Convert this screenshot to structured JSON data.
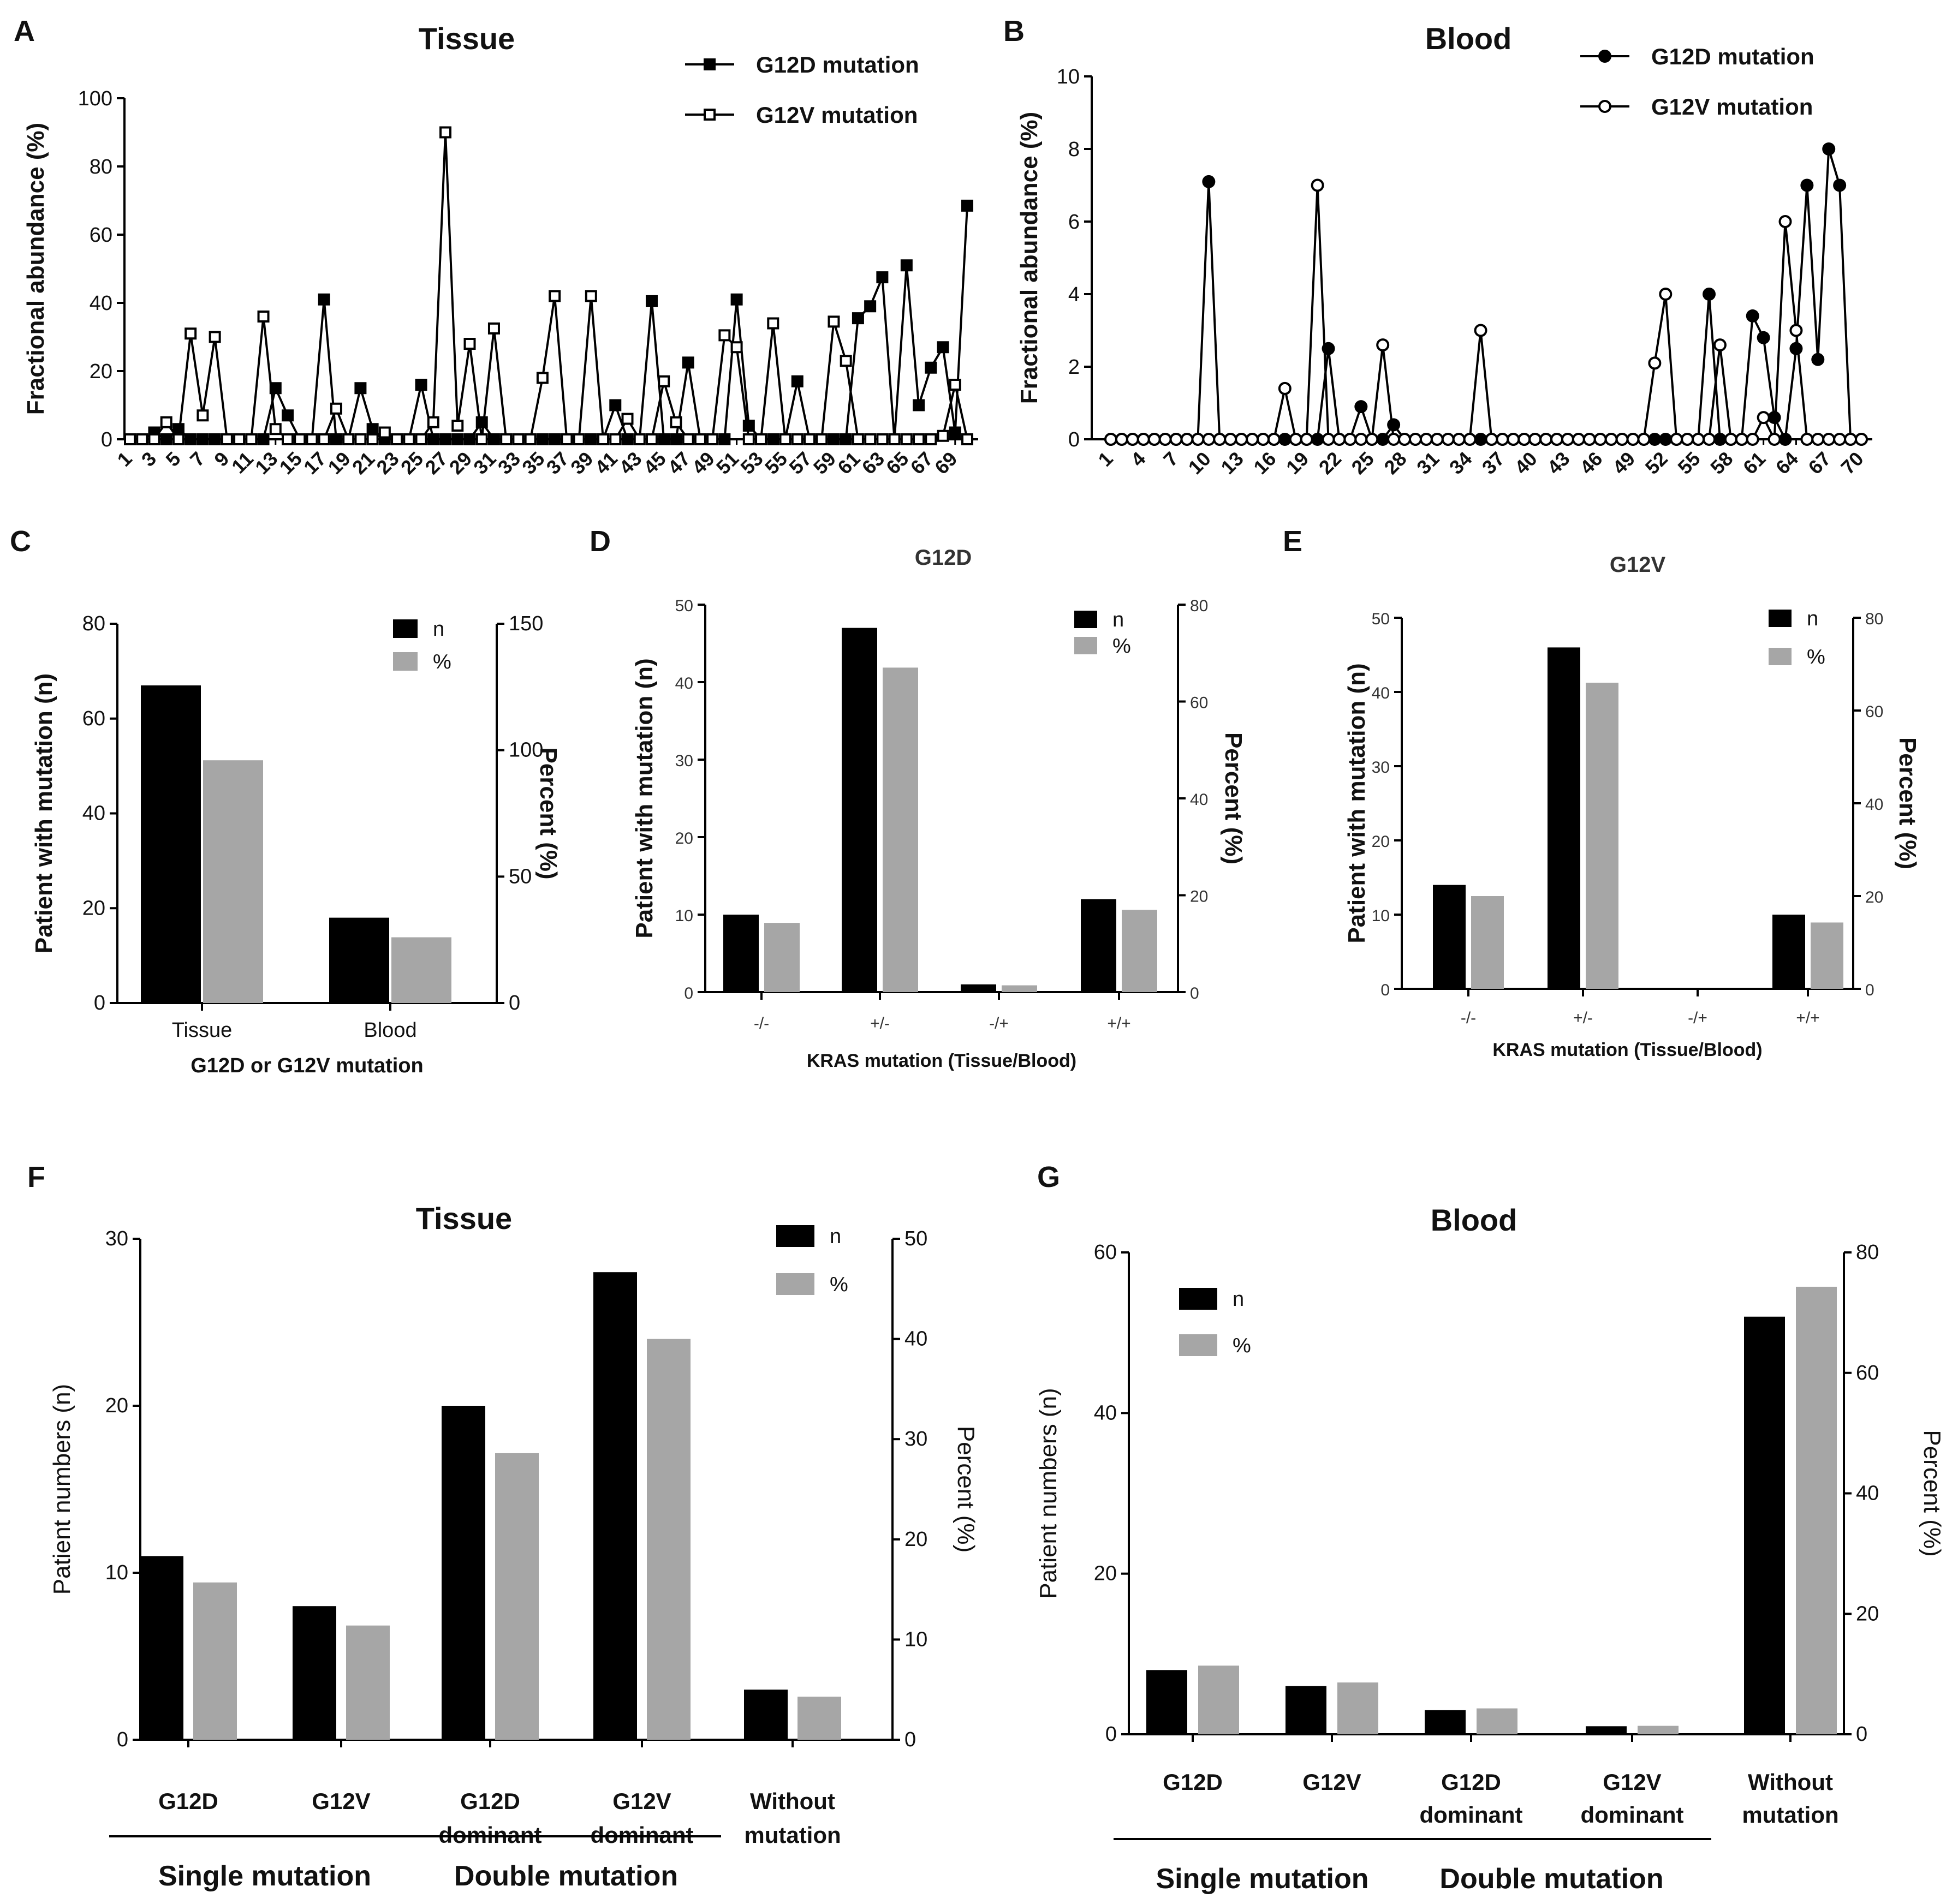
{
  "colors": {
    "black": "#000000",
    "gray": "#a6a6a6"
  },
  "panels": {
    "A": {
      "letter": "A",
      "chart_data": {
        "type": "line",
        "title": "Tissue",
        "ylabel": "Fractional abundance (%)",
        "xlabel": "",
        "ylim": [
          0,
          100
        ],
        "yticks": [
          0,
          20,
          40,
          60,
          80,
          100
        ],
        "x_tick_labels": [
          "1",
          "3",
          "5",
          "7",
          "9",
          "11",
          "13",
          "15",
          "17",
          "19",
          "21",
          "23",
          "25",
          "27",
          "29",
          "31",
          "33",
          "35",
          "37",
          "39",
          "41",
          "43",
          "45",
          "47",
          "49",
          "51",
          "53",
          "55",
          "57",
          "59",
          "61",
          "63",
          "65",
          "67",
          "69"
        ],
        "legend": [
          "G12D mutation",
          "G12V mutation"
        ],
        "series": [
          {
            "name": "G12D mutation",
            "marker": "filled-square",
            "values": [
              0,
              0,
              2,
              0,
              3,
              0,
              0,
              0,
              0,
              0,
              0,
              0,
              15,
              7,
              0,
              0,
              41,
              0,
              0,
              15,
              3,
              0,
              0,
              0,
              16,
              0,
              0,
              0,
              0,
              5,
              0,
              0,
              0,
              0,
              0,
              0,
              0,
              0,
              0,
              0,
              10,
              0,
              0,
              40.5,
              0,
              0,
              22.5,
              0,
              0,
              0,
              41,
              4,
              0,
              0,
              0,
              17,
              0,
              0,
              0,
              0,
              35.5,
              39,
              47.5,
              0,
              51,
              10,
              21,
              27,
              2,
              68.5
            ]
          },
          {
            "name": "G12V mutation",
            "marker": "open-square",
            "values": [
              0,
              0,
              0,
              5,
              0,
              31,
              7,
              30,
              0,
              0,
              0,
              36,
              3,
              0,
              0,
              0,
              0,
              9,
              0,
              0,
              0,
              2,
              0,
              0,
              0,
              5,
              90,
              4,
              28,
              0,
              32.5,
              0,
              0,
              0,
              18,
              42,
              0,
              0,
              42,
              0,
              0,
              6,
              0,
              0,
              17,
              5,
              0,
              0,
              0,
              30.5,
              27,
              0,
              0,
              34,
              0,
              0,
              0,
              0,
              34.5,
              23,
              0,
              0,
              0,
              0,
              0,
              0,
              0,
              1,
              16,
              0
            ]
          }
        ]
      }
    },
    "B": {
      "letter": "B",
      "chart_data": {
        "type": "line",
        "title": "Blood",
        "ylabel": "Fractional abundance (%)",
        "xlabel": "",
        "ylim": [
          0,
          10
        ],
        "yticks": [
          0,
          2,
          4,
          6,
          8,
          10
        ],
        "x_tick_labels": [
          "1",
          "4",
          "7",
          "10",
          "13",
          "16",
          "19",
          "22",
          "25",
          "28",
          "31",
          "34",
          "37",
          "40",
          "43",
          "46",
          "49",
          "52",
          "55",
          "58",
          "61",
          "64",
          "67",
          "70"
        ],
        "legend": [
          "G12D mutation",
          "G12V mutation"
        ],
        "series": [
          {
            "name": "G12D mutation",
            "marker": "filled-circle",
            "values": [
              0,
              0,
              0,
              0,
              0,
              0,
              0,
              0,
              0,
              7.1,
              0,
              0,
              0,
              0,
              0,
              0,
              0,
              0,
              0,
              0,
              2.5,
              0,
              0,
              0.9,
              0,
              0,
              0.4,
              0,
              0,
              0,
              0,
              0,
              0,
              0,
              0,
              0,
              0,
              0,
              0,
              0,
              0,
              0,
              0,
              0,
              0,
              0,
              0,
              0,
              0,
              0,
              0,
              0,
              0,
              0,
              0,
              4.0,
              0,
              0,
              0,
              3.4,
              2.8,
              0.6,
              0,
              2.5,
              7.0,
              2.2,
              8.0,
              7.0,
              0,
              0
            ]
          },
          {
            "name": "G12V mutation",
            "marker": "open-circle",
            "values": [
              0,
              0,
              0,
              0,
              0,
              0,
              0,
              0,
              0,
              0,
              0,
              0,
              0,
              0,
              0,
              0,
              1.4,
              0,
              0,
              7.0,
              0,
              0,
              0,
              0,
              0,
              2.6,
              0,
              0,
              0,
              0,
              0,
              0,
              0,
              0,
              3.0,
              0,
              0,
              0,
              0,
              0,
              0,
              0,
              0,
              0,
              0,
              0,
              0,
              0,
              0,
              0,
              2.1,
              4.0,
              0,
              0,
              0,
              0,
              2.6,
              0,
              0,
              0,
              0.6,
              0,
              6.0,
              3.0,
              0,
              0,
              0,
              0,
              0,
              0
            ]
          }
        ]
      }
    },
    "C": {
      "letter": "C",
      "chart_data": {
        "type": "bar",
        "title": "",
        "categories": [
          "Tissue",
          "Blood"
        ],
        "xlabel": "G12D or G12V mutation",
        "ylabel": "Patient with mutation (n)",
        "y2label": "Percent (%)",
        "ylim": [
          0,
          80
        ],
        "yticks": [
          0,
          20,
          40,
          60,
          80
        ],
        "y2lim": [
          0,
          150
        ],
        "y2ticks": [
          0,
          50,
          100,
          150
        ],
        "legend": [
          "n",
          "%"
        ],
        "series": [
          {
            "name": "n",
            "axis": "left",
            "values": [
              67,
              18
            ]
          },
          {
            "name": "%",
            "axis": "right",
            "values": [
              96,
              26
            ]
          }
        ]
      }
    },
    "D": {
      "letter": "D",
      "chart_data": {
        "type": "bar",
        "title": "G12D",
        "categories": [
          "-/-",
          "+/-",
          "-/+",
          "+/+"
        ],
        "xlabel": "KRAS mutation (Tissue/Blood)",
        "ylabel": "Patient with mutation (n)",
        "y2label": "Percent (%)",
        "ylim": [
          0,
          50
        ],
        "yticks": [
          0,
          10,
          20,
          30,
          40,
          50
        ],
        "y2lim": [
          0,
          80
        ],
        "y2ticks": [
          0,
          20,
          40,
          60,
          80
        ],
        "legend": [
          "n",
          "%"
        ],
        "series": [
          {
            "name": "n",
            "axis": "left",
            "values": [
              10,
              47,
              1,
              12
            ]
          },
          {
            "name": "%",
            "axis": "right",
            "values": [
              14.3,
              67,
              1.4,
              17
            ]
          }
        ]
      }
    },
    "E": {
      "letter": "E",
      "chart_data": {
        "type": "bar",
        "title": "G12V",
        "categories": [
          "-/-",
          "+/-",
          "-/+",
          "+/+"
        ],
        "xlabel": "KRAS mutation (Tissue/Blood)",
        "ylabel": "Patient with mutation (n)",
        "y2label": "Percent (%)",
        "ylim": [
          0,
          50
        ],
        "yticks": [
          0,
          10,
          20,
          30,
          40,
          50
        ],
        "y2lim": [
          0,
          80
        ],
        "y2ticks": [
          0,
          20,
          40,
          60,
          80
        ],
        "legend": [
          "n",
          "%"
        ],
        "series": [
          {
            "name": "n",
            "axis": "left",
            "values": [
              14,
              46,
              0,
              10
            ]
          },
          {
            "name": "%",
            "axis": "right",
            "values": [
              20,
              66,
              0,
              14.3
            ]
          }
        ]
      }
    },
    "F": {
      "letter": "F",
      "chart_data": {
        "type": "bar",
        "title": "Tissue",
        "categories": [
          "G12D",
          "G12V",
          "G12D\ndominant",
          "G12V\ndominant",
          "Without\nmutation"
        ],
        "groups": [
          {
            "label": "Single mutation",
            "from": 0,
            "to": 1
          },
          {
            "label": "Double mutation",
            "from": 2,
            "to": 3
          }
        ],
        "xlabel": "",
        "ylabel": "Patient numbers (n)",
        "y2label": "Percent (%)",
        "ylim": [
          0,
          30
        ],
        "yticks": [
          0,
          10,
          20,
          30
        ],
        "y2lim": [
          0,
          50
        ],
        "y2ticks": [
          0,
          10,
          20,
          30,
          40,
          50
        ],
        "legend": [
          "n",
          "%"
        ],
        "series": [
          {
            "name": "n",
            "axis": "left",
            "values": [
              11,
              8,
              20,
              28,
              3
            ]
          },
          {
            "name": "%",
            "axis": "right",
            "values": [
              15.7,
              11.4,
              28.6,
              40,
              4.3
            ]
          }
        ]
      }
    },
    "G": {
      "letter": "G",
      "chart_data": {
        "type": "bar",
        "title": "Blood",
        "categories": [
          "G12D",
          "G12V",
          "G12D\ndominant",
          "G12V\ndominant",
          "Without\nmutation"
        ],
        "groups": [
          {
            "label": "Single mutation",
            "from": 0,
            "to": 1
          },
          {
            "label": "Double mutation",
            "from": 2,
            "to": 3
          }
        ],
        "xlabel": "",
        "ylabel": "Patient numbers (n)",
        "y2label": "Percent (%)",
        "ylim": [
          0,
          60
        ],
        "yticks": [
          0,
          20,
          40,
          60
        ],
        "y2lim": [
          0,
          80
        ],
        "y2ticks": [
          0,
          20,
          40,
          60,
          80
        ],
        "legend": [
          "n",
          "%"
        ],
        "series": [
          {
            "name": "n",
            "axis": "left",
            "values": [
              8,
              6,
              3,
              1,
              52
            ]
          },
          {
            "name": "%",
            "axis": "right",
            "values": [
              11.4,
              8.6,
              4.3,
              1.4,
              74.3
            ]
          }
        ]
      }
    }
  }
}
